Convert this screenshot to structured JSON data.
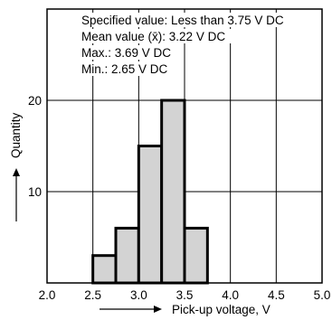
{
  "chart_data": {
    "type": "bar",
    "xlabel": "Pick-up voltage, V",
    "ylabel": "Quantity",
    "xlim": [
      2.0,
      5.0
    ],
    "ylim": [
      0,
      30
    ],
    "grid": true,
    "x_ticks": [
      {
        "value": 2.0,
        "label": "2.0"
      },
      {
        "value": 2.5,
        "label": "2.5"
      },
      {
        "value": 3.0,
        "label": "3.0"
      },
      {
        "value": 3.5,
        "label": "3.5"
      },
      {
        "value": 4.0,
        "label": "4.0"
      },
      {
        "value": 4.5,
        "label": "4.5"
      },
      {
        "value": 5.0,
        "label": "5.0"
      }
    ],
    "y_ticks": [
      {
        "value": 10,
        "label": "10"
      },
      {
        "value": 20,
        "label": "20"
      }
    ],
    "bins": [
      {
        "x0": 2.5,
        "x1": 2.75,
        "count": 3
      },
      {
        "x0": 2.75,
        "x1": 3.0,
        "count": 6
      },
      {
        "x0": 3.0,
        "x1": 3.25,
        "count": 15
      },
      {
        "x0": 3.25,
        "x1": 3.5,
        "count": 20
      },
      {
        "x0": 3.5,
        "x1": 3.75,
        "count": 6
      }
    ],
    "annotations": [
      "Specified value: Less than 3.75 V DC",
      "Mean value (x̄): 3.22 V DC",
      "Max.: 3.69 V DC",
      "Min.: 2.65 V DC"
    ],
    "colors": {
      "bar_fill": "#d3d3d3",
      "line": "#000000"
    }
  }
}
